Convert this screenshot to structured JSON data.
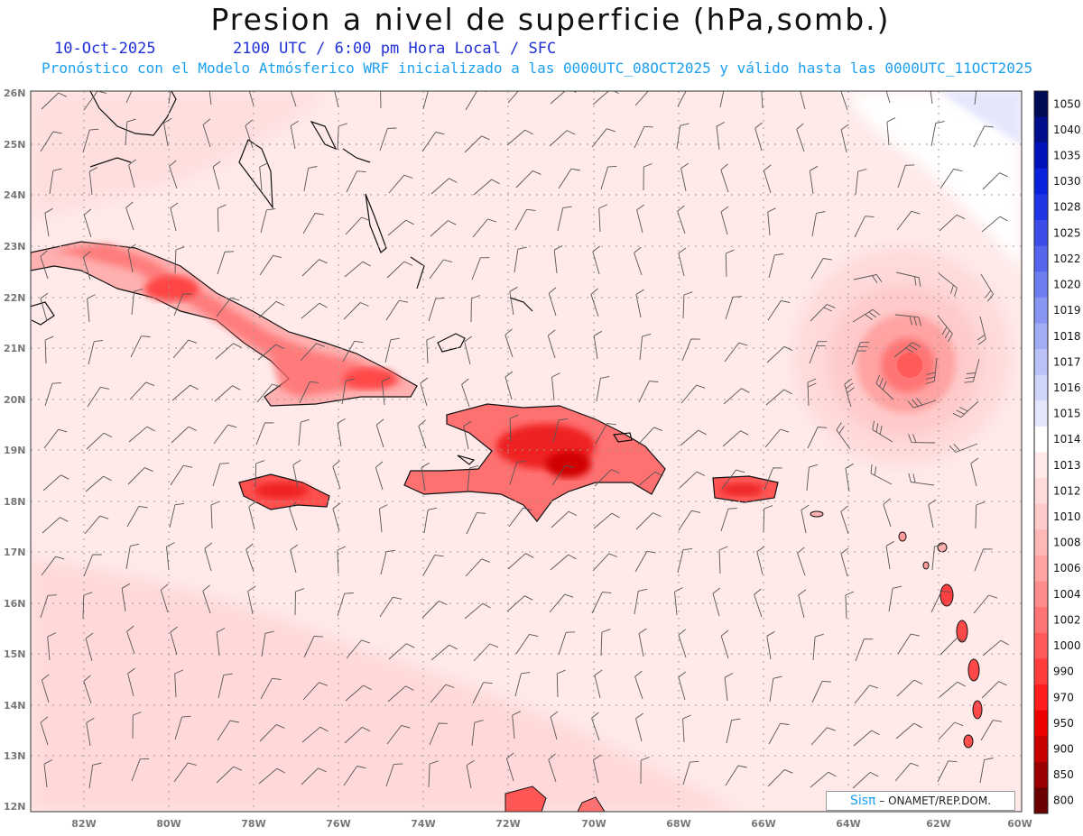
{
  "header": {
    "title": "Presion a nivel de superficie (hPa,somb.)",
    "date": "10-Oct-2025",
    "time": "2100 UTC / 6:00 pm Hora Local / SFC",
    "subtitle": "Pronóstico con el Modelo Atmósferico WRF inicializado a las 0000UTC_08OCT2025 y válido hasta las  0000UTC_11OCT2025"
  },
  "axes": {
    "lat_labels": [
      "26N",
      "25N",
      "24N",
      "23N",
      "22N",
      "21N",
      "20N",
      "19N",
      "18N",
      "17N",
      "16N",
      "15N",
      "14N",
      "13N",
      "12N"
    ],
    "lon_labels": [
      "82W",
      "80W",
      "78W",
      "76W",
      "74W",
      "72W",
      "70W",
      "68W",
      "66W",
      "64W",
      "62W",
      "60W"
    ]
  },
  "colorbar": {
    "levels": [
      "1050",
      "1040",
      "1035",
      "1030",
      "1028",
      "1025",
      "1022",
      "1020",
      "1019",
      "1018",
      "1017",
      "1016",
      "1015",
      "1014",
      "1013",
      "1012",
      "1010",
      "1008",
      "1006",
      "1004",
      "1002",
      "1000",
      "990",
      "970",
      "950",
      "900",
      "850",
      "800"
    ],
    "colors": [
      "#000b55",
      "#000e8c",
      "#0013bb",
      "#0b22dd",
      "#2035e6",
      "#3c4ce8",
      "#5566ec",
      "#6e7ef0",
      "#8896f2",
      "#a1acf4",
      "#bac2f7",
      "#d0d6fa",
      "#e4e7fc",
      "#ffffff",
      "#ffe9e9",
      "#ffdada",
      "#ffcaca",
      "#ffb8b8",
      "#ffa3a3",
      "#ff8c8c",
      "#ff7474",
      "#ff5a5a",
      "#ff3d3d",
      "#ff1e1e",
      "#ee0000",
      "#c80000",
      "#9a0000",
      "#6a0000"
    ]
  },
  "credit": {
    "logo_text": "Sisπ",
    "text": " – ONAMET/REP.DOM."
  },
  "legend_colors": {
    "land_pressure": "#ee4444",
    "ocean_pressure": "#fde0e0",
    "low_center": "#ff6e6e"
  }
}
